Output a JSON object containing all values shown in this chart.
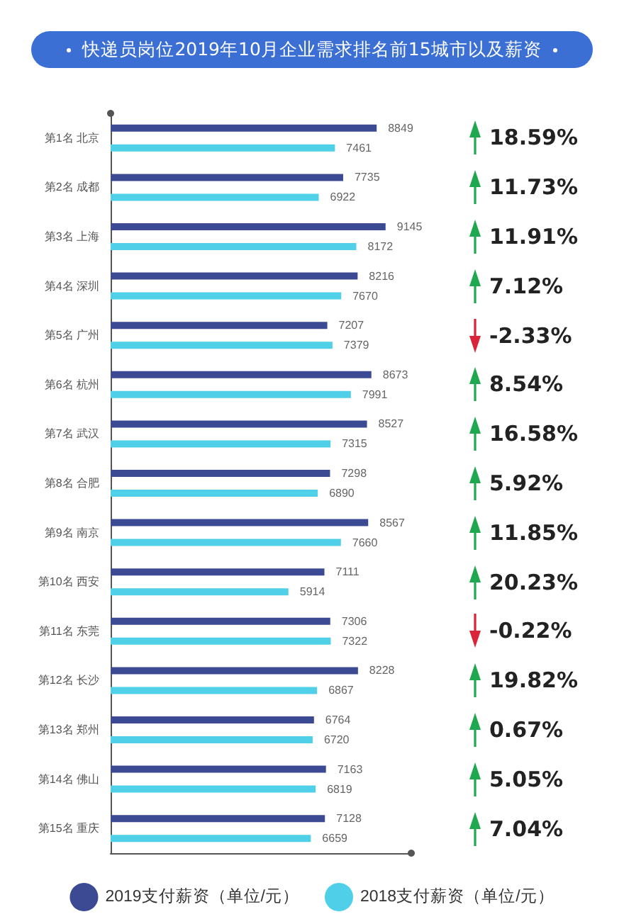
{
  "chart_data": {
    "type": "bar",
    "orientation": "horizontal",
    "title": "快递员岗位2019年10月企业需求排名前15城市以及薪资",
    "categories": [
      "第1名 北京",
      "第2名 成都",
      "第3名 上海",
      "第4名 深圳",
      "第5名 广州",
      "第6名 杭州",
      "第7名 武汉",
      "第8名 合肥",
      "第9名 南京",
      "第10名 西安",
      "第11名 东莞",
      "第12名 长沙",
      "第13名 郑州",
      "第14名 佛山",
      "第15名 重庆"
    ],
    "series": [
      {
        "name": "2019支付薪资（单位/元）",
        "color": "#3c4a94",
        "values": [
          8849,
          7735,
          9145,
          8216,
          7207,
          8673,
          8527,
          7298,
          8567,
          7111,
          7306,
          8228,
          6764,
          7163,
          7128
        ]
      },
      {
        "name": "2018支付薪资（单位/元）",
        "color": "#4fd0e8",
        "values": [
          7461,
          6922,
          8172,
          7670,
          7379,
          7991,
          7315,
          6890,
          7660,
          5914,
          7322,
          6867,
          6720,
          6819,
          6659
        ]
      }
    ],
    "data_labels": true,
    "grid": false,
    "legend": "bottom",
    "annotations": [
      "18.59%",
      "11.73%",
      "11.91%",
      "7.12%",
      "-2.33%",
      "8.54%",
      "16.58%",
      "5.92%",
      "11.85%",
      "20.23%",
      "-0.22%",
      "19.82%",
      "0.67%",
      "5.05%",
      "7.04%"
    ]
  }
}
